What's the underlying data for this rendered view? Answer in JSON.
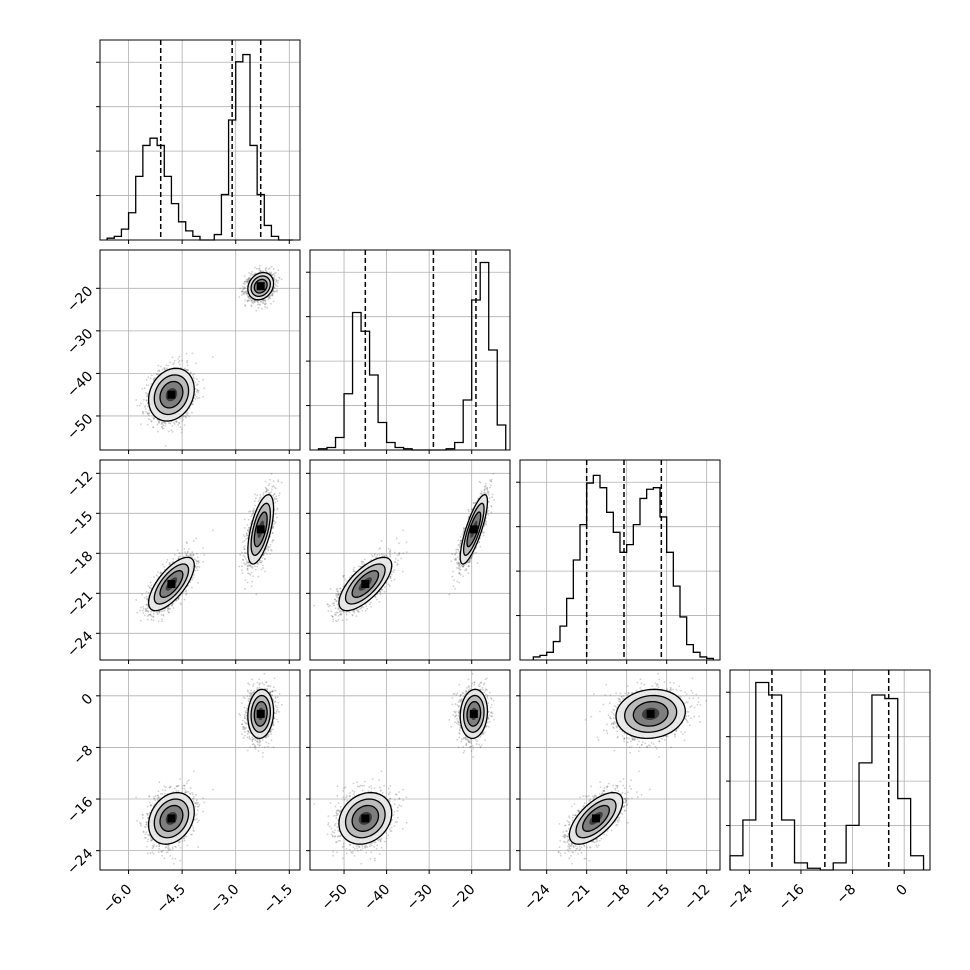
{
  "chart_data": {
    "type": "corner",
    "parameters": 4,
    "grid": true,
    "colors": {
      "axes": "#000000",
      "grid": "#b0b0b0",
      "points": "#555555",
      "contour": "#000000",
      "fill_dark": "#000000"
    },
    "axes": [
      {
        "range": [
          -6.8,
          -1.2
        ],
        "ticks": [
          -6.0,
          -4.5,
          -3.0,
          -1.5
        ],
        "tick_labels": [
          "−6.0",
          "−4.5",
          "−3.0",
          "−1.5"
        ]
      },
      {
        "range": [
          -58,
          -11
        ],
        "ticks": [
          -50,
          -40,
          -30,
          -20
        ],
        "tick_labels": [
          "−50",
          "−40",
          "−30",
          "−20"
        ]
      },
      {
        "range": [
          -26,
          -11
        ],
        "ticks": [
          -24,
          -21,
          -18,
          -15,
          -12
        ],
        "tick_labels": [
          "−24",
          "−21",
          "−18",
          "−15",
          "−12"
        ]
      },
      {
        "range": [
          -27,
          4
        ],
        "ticks": [
          -24,
          -16,
          -8,
          0
        ],
        "tick_labels": [
          "−24",
          "−16",
          "−8",
          "0"
        ]
      }
    ],
    "quantiles": [
      [
        -5.1,
        -3.1,
        -2.3
      ],
      [
        -45,
        -29,
        -19
      ],
      [
        -21,
        -18.2,
        -15.4
      ],
      [
        -20.5,
        -12.3,
        -2.4
      ]
    ],
    "histograms": [
      {
        "edges": [
          -6.6,
          -6.4,
          -6.2,
          -6.0,
          -5.8,
          -5.6,
          -5.4,
          -5.2,
          -5.0,
          -4.8,
          -4.6,
          -4.4,
          -4.2,
          -4.0,
          -3.8,
          -3.6,
          -3.4,
          -3.2,
          -3.0,
          -2.8,
          -2.6,
          -2.4,
          -2.2,
          -2.0,
          -1.8,
          -1.6,
          -1.4
        ],
        "counts": [
          1,
          2,
          6,
          15,
          35,
          52,
          56,
          52,
          35,
          20,
          10,
          5,
          2,
          0,
          0,
          3,
          25,
          66,
          98,
          102,
          52,
          25,
          8,
          2,
          0,
          0
        ],
        "ymax": 110
      },
      {
        "edges": [
          -56,
          -54,
          -52,
          -50,
          -48,
          -46,
          -44,
          -42,
          -40,
          -38,
          -36,
          -34,
          -32,
          -30,
          -28,
          -26,
          -24,
          -22,
          -20,
          -18,
          -16,
          -14,
          -12
        ],
        "counts": [
          1,
          2,
          10,
          45,
          110,
          95,
          60,
          22,
          6,
          2,
          1,
          0,
          0,
          0,
          0,
          1,
          6,
          40,
          120,
          150,
          80,
          20
        ],
        "ymax": 160
      },
      {
        "edges": [
          -25.0,
          -24.5,
          -24.0,
          -23.5,
          -23.0,
          -22.5,
          -22.0,
          -21.5,
          -21.0,
          -20.5,
          -20.0,
          -19.5,
          -19.0,
          -18.5,
          -18.0,
          -17.5,
          -17.0,
          -16.5,
          -16.0,
          -15.5,
          -15.0,
          -14.5,
          -14.0,
          -13.5,
          -13.0,
          -12.5,
          -12.0,
          -11.5
        ],
        "counts": [
          2,
          3,
          5,
          12,
          22,
          40,
          65,
          88,
          115,
          120,
          112,
          96,
          83,
          70,
          75,
          88,
          105,
          111,
          112,
          93,
          70,
          48,
          28,
          10,
          5,
          2,
          1
        ],
        "ymax": 130
      },
      {
        "edges": [
          -27,
          -25,
          -23,
          -21,
          -19,
          -17,
          -15,
          -13,
          -11,
          -9,
          -7,
          -5,
          -3,
          -1,
          1,
          3
        ],
        "counts": [
          8,
          28,
          105,
          98,
          28,
          4,
          1,
          0,
          4,
          25,
          60,
          98,
          96,
          40,
          8
        ],
        "ymax": 112
      }
    ],
    "clusters": [
      {
        "means": [
          -4.8,
          -45,
          -20.3,
          -19.0
        ],
        "sds": [
          0.32,
          3.1,
          1.0,
          2.0
        ],
        "corr": [
          [
            1,
            0.2,
            0.7,
            0.25
          ],
          [
            0.2,
            1,
            0.7,
            0.2
          ],
          [
            0.7,
            0.7,
            1,
            0.65
          ],
          [
            0.25,
            0.2,
            0.65,
            1
          ]
        ]
      },
      {
        "means": [
          -2.3,
          -19.5,
          -16.2,
          -2.8
        ],
        "sds": [
          0.18,
          1.6,
          1.3,
          1.9
        ],
        "corr": [
          [
            1,
            0.2,
            0.6,
            0.1
          ],
          [
            0.2,
            1,
            0.8,
            0.1
          ],
          [
            0.6,
            0.8,
            1,
            0.1
          ],
          [
            0.1,
            0.1,
            0.1,
            1
          ]
        ]
      }
    ]
  }
}
